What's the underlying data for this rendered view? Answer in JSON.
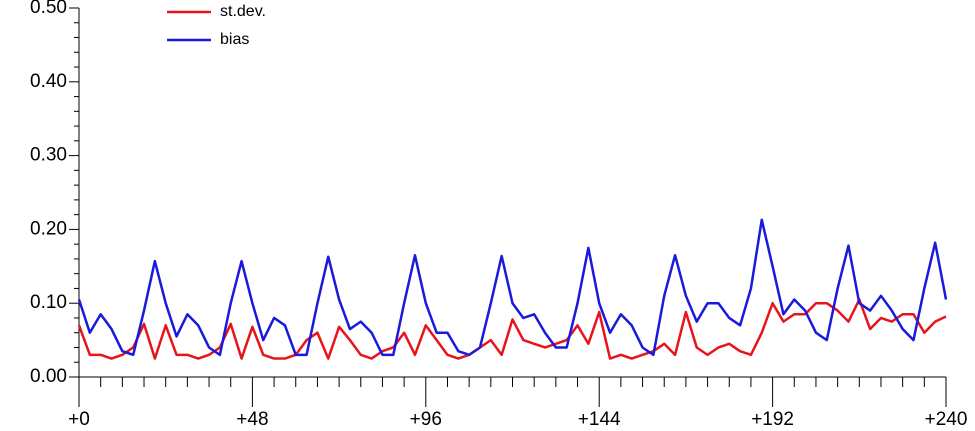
{
  "chart_data": {
    "type": "line",
    "x": [
      0,
      3,
      6,
      9,
      12,
      15,
      18,
      21,
      24,
      27,
      30,
      33,
      36,
      39,
      42,
      45,
      48,
      51,
      54,
      57,
      60,
      63,
      66,
      69,
      72,
      75,
      78,
      81,
      84,
      87,
      90,
      93,
      96,
      99,
      102,
      105,
      108,
      111,
      114,
      117,
      120,
      123,
      126,
      129,
      132,
      135,
      138,
      141,
      144,
      147,
      150,
      153,
      156,
      159,
      162,
      165,
      168,
      171,
      174,
      177,
      180,
      183,
      186,
      189,
      192,
      195,
      198,
      201,
      204,
      207,
      210,
      213,
      216,
      219,
      222,
      225,
      228,
      231,
      234,
      237,
      240
    ],
    "series": [
      {
        "name": "st.dev.",
        "color": "#e8141c",
        "values": [
          0.07,
          0.03,
          0.03,
          0.025,
          0.03,
          0.04,
          0.072,
          0.025,
          0.07,
          0.03,
          0.03,
          0.025,
          0.03,
          0.04,
          0.072,
          0.025,
          0.068,
          0.03,
          0.025,
          0.025,
          0.03,
          0.05,
          0.06,
          0.025,
          0.068,
          0.05,
          0.03,
          0.025,
          0.035,
          0.04,
          0.06,
          0.03,
          0.07,
          0.05,
          0.03,
          0.025,
          0.03,
          0.04,
          0.05,
          0.03,
          0.078,
          0.05,
          0.045,
          0.04,
          0.045,
          0.05,
          0.07,
          0.045,
          0.088,
          0.025,
          0.03,
          0.025,
          0.03,
          0.035,
          0.045,
          0.03,
          0.088,
          0.04,
          0.03,
          0.04,
          0.045,
          0.035,
          0.03,
          0.06,
          0.1,
          0.075,
          0.085,
          0.085,
          0.1,
          0.1,
          0.09,
          0.075,
          0.105,
          0.065,
          0.08,
          0.075,
          0.085,
          0.085,
          0.06,
          0.075,
          0.082
        ]
      },
      {
        "name": "bias",
        "color": "#1a1adc",
        "values": [
          0.105,
          0.06,
          0.085,
          0.065,
          0.035,
          0.03,
          0.09,
          0.157,
          0.1,
          0.055,
          0.085,
          0.07,
          0.04,
          0.03,
          0.1,
          0.157,
          0.1,
          0.05,
          0.08,
          0.07,
          0.03,
          0.03,
          0.1,
          0.163,
          0.105,
          0.065,
          0.075,
          0.06,
          0.03,
          0.03,
          0.1,
          0.165,
          0.1,
          0.06,
          0.06,
          0.035,
          0.03,
          0.04,
          0.1,
          0.164,
          0.1,
          0.08,
          0.085,
          0.06,
          0.04,
          0.04,
          0.1,
          0.175,
          0.1,
          0.06,
          0.085,
          0.07,
          0.04,
          0.03,
          0.11,
          0.165,
          0.11,
          0.075,
          0.1,
          0.1,
          0.08,
          0.07,
          0.12,
          0.213,
          0.15,
          0.085,
          0.105,
          0.09,
          0.06,
          0.05,
          0.12,
          0.178,
          0.1,
          0.09,
          0.11,
          0.09,
          0.065,
          0.05,
          0.12,
          0.182,
          0.105
        ]
      }
    ],
    "xlim": [
      0,
      240
    ],
    "xticks": [
      {
        "value": 0,
        "label": "+0"
      },
      {
        "value": 48,
        "label": "+48"
      },
      {
        "value": 96,
        "label": "+96"
      },
      {
        "value": 144,
        "label": "+144"
      },
      {
        "value": 192,
        "label": "+192"
      },
      {
        "value": 240,
        "label": "+240"
      }
    ],
    "xminorticks": [
      6,
      12,
      18,
      24,
      30,
      36,
      42,
      54,
      60,
      66,
      72,
      78,
      84,
      90,
      102,
      108,
      114,
      120,
      126,
      132,
      138,
      150,
      156,
      162,
      168,
      174,
      180,
      186,
      198,
      204,
      210,
      216,
      222,
      228,
      234
    ],
    "ylim": [
      0,
      0.5
    ],
    "yticks": [
      {
        "value": 0,
        "label": "0.00"
      },
      {
        "value": 0.1,
        "label": "0.10"
      },
      {
        "value": 0.2,
        "label": "0.20"
      },
      {
        "value": 0.3,
        "label": "0.30"
      },
      {
        "value": 0.4,
        "label": "0.40"
      },
      {
        "value": 0.5,
        "label": "0.50"
      }
    ],
    "yminorticks": [
      0.02,
      0.04,
      0.06,
      0.08,
      0.12,
      0.14,
      0.16,
      0.18,
      0.22,
      0.24,
      0.26,
      0.28,
      0.32,
      0.34,
      0.36,
      0.38,
      0.42,
      0.44,
      0.46,
      0.48
    ],
    "legend": "upper left"
  }
}
